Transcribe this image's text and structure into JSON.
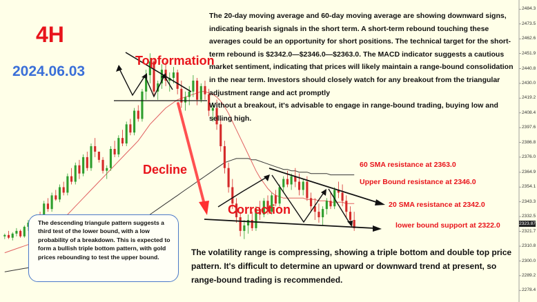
{
  "header": {
    "timeframe": "4H",
    "date": "2024.06.03"
  },
  "annotations": {
    "top_formation": "Topformation",
    "decline": "Decline",
    "correction": "Correction"
  },
  "analysis": {
    "paragraph1": "The 20-day moving average and 60-day moving average are showing downward signs, indicating bearish signals in the short term. A short-term rebound touching these averages could be an opportunity for short positions. The technical target for the short-term rebound is $2342.0—$2346.0—$2363.0. The MACD indicator suggests a cautious market sentiment, indicating that prices will likely maintain a range-bound consolidation in the near term. Investors should closely watch for any breakout from the triangular adjustment range and act promptly",
    "paragraph2": "Without a breakout, it's advisable to engage in range-bound trading, buying low and selling high."
  },
  "levels": {
    "sma60": "60 SMA resistance at 2363.0",
    "upper_bound": "Upper Bound resistance at 2346.0",
    "sma20": "20 SMA resistance at 2342.0",
    "lower_bound": "lower bound support at 2322.0"
  },
  "callout": "The descending triangule pattern suggests a third test of the lower bound, with a low probability of a breakdown. This is expected to form a bullish triple bottom pattern, with gold prices rebounding to test the upper bound.",
  "summary": "The volatility range is compressing, showing a triple bottom and double top price pattern. It's difficult to determine an upward or downward trend at present, so range-bound trading is recommended.",
  "current_price": "2323.87",
  "colors": {
    "background": "#ffffe8",
    "up_candle": "#2e9e2e",
    "down_candle": "#d42a2a",
    "sma20": "#e06060",
    "sma60": "#333333",
    "accent": "#e8141b"
  },
  "chart_data": {
    "type": "candlestick",
    "y_axis_ticks": [
      2484.3,
      2473.5,
      2462.6,
      2451.9,
      2440.8,
      2430.0,
      2419.2,
      2408.4,
      2397.6,
      2386.8,
      2376.0,
      2364.9,
      2354.1,
      2343.3,
      2332.5,
      2321.7,
      2310.8,
      2300.0,
      2289.2,
      2278.4
    ],
    "ylim": [
      2276.0,
      2488.0
    ],
    "key_levels": {
      "sma60_resistance": 2363.0,
      "upper_bound": 2346.0,
      "sma20_resistance": 2342.0,
      "lower_bound_support": 2322.0
    },
    "candles": [
      [
        2318,
        2320,
        2316,
        2319
      ],
      [
        2319,
        2322,
        2316,
        2317
      ],
      [
        2317,
        2321,
        2315,
        2320
      ],
      [
        2320,
        2324,
        2318,
        2322
      ],
      [
        2322,
        2323,
        2317,
        2318
      ],
      [
        2318,
        2326,
        2317,
        2325
      ],
      [
        2325,
        2330,
        2322,
        2328
      ],
      [
        2328,
        2330,
        2323,
        2324
      ],
      [
        2324,
        2334,
        2322,
        2332
      ],
      [
        2332,
        2336,
        2328,
        2330
      ],
      [
        2330,
        2344,
        2329,
        2342
      ],
      [
        2342,
        2346,
        2336,
        2338
      ],
      [
        2338,
        2350,
        2336,
        2348
      ],
      [
        2348,
        2352,
        2344,
        2345
      ],
      [
        2345,
        2356,
        2343,
        2354
      ],
      [
        2354,
        2358,
        2348,
        2350
      ],
      [
        2350,
        2364,
        2348,
        2362
      ],
      [
        2362,
        2368,
        2356,
        2358
      ],
      [
        2358,
        2372,
        2356,
        2370
      ],
      [
        2370,
        2374,
        2360,
        2364
      ],
      [
        2364,
        2378,
        2362,
        2376
      ],
      [
        2376,
        2380,
        2366,
        2368
      ],
      [
        2368,
        2386,
        2366,
        2384
      ],
      [
        2384,
        2390,
        2376,
        2380
      ],
      [
        2380,
        2378,
        2372,
        2374
      ],
      [
        2374,
        2376,
        2364,
        2366
      ],
      [
        2366,
        2370,
        2360,
        2368
      ],
      [
        2368,
        2384,
        2366,
        2382
      ],
      [
        2382,
        2388,
        2376,
        2378
      ],
      [
        2378,
        2392,
        2376,
        2390
      ],
      [
        2390,
        2396,
        2384,
        2386
      ],
      [
        2386,
        2402,
        2384,
        2400
      ],
      [
        2400,
        2404,
        2392,
        2394
      ],
      [
        2394,
        2412,
        2392,
        2410
      ],
      [
        2410,
        2414,
        2402,
        2404
      ],
      [
        2404,
        2426,
        2402,
        2424
      ],
      [
        2424,
        2440,
        2418,
        2436
      ],
      [
        2436,
        2452,
        2430,
        2446
      ],
      [
        2446,
        2448,
        2420,
        2424
      ],
      [
        2424,
        2432,
        2418,
        2430
      ],
      [
        2430,
        2444,
        2426,
        2440
      ],
      [
        2440,
        2446,
        2428,
        2432
      ],
      [
        2432,
        2438,
        2424,
        2434
      ],
      [
        2434,
        2442,
        2430,
        2438
      ],
      [
        2438,
        2440,
        2422,
        2426
      ],
      [
        2426,
        2432,
        2412,
        2416
      ],
      [
        2416,
        2424,
        2410,
        2420
      ],
      [
        2420,
        2428,
        2414,
        2424
      ],
      [
        2424,
        2436,
        2420,
        2432
      ],
      [
        2432,
        2434,
        2414,
        2418
      ],
      [
        2418,
        2430,
        2416,
        2428
      ],
      [
        2428,
        2432,
        2418,
        2422
      ],
      [
        2422,
        2426,
        2406,
        2410
      ],
      [
        2410,
        2416,
        2402,
        2412
      ],
      [
        2412,
        2418,
        2396,
        2400
      ],
      [
        2400,
        2404,
        2380,
        2384
      ],
      [
        2384,
        2388,
        2364,
        2368
      ],
      [
        2368,
        2372,
        2350,
        2354
      ],
      [
        2354,
        2360,
        2338,
        2342
      ],
      [
        2342,
        2346,
        2328,
        2332
      ],
      [
        2332,
        2336,
        2318,
        2322
      ],
      [
        2322,
        2330,
        2316,
        2326
      ],
      [
        2326,
        2334,
        2320,
        2330
      ],
      [
        2330,
        2336,
        2322,
        2324
      ],
      [
        2324,
        2340,
        2322,
        2338
      ],
      [
        2338,
        2344,
        2330,
        2334
      ],
      [
        2334,
        2346,
        2332,
        2344
      ],
      [
        2344,
        2348,
        2334,
        2336
      ],
      [
        2336,
        2350,
        2334,
        2348
      ],
      [
        2348,
        2352,
        2340,
        2342
      ],
      [
        2342,
        2356,
        2340,
        2354
      ],
      [
        2354,
        2362,
        2350,
        2360
      ],
      [
        2360,
        2366,
        2354,
        2356
      ],
      [
        2356,
        2364,
        2352,
        2362
      ],
      [
        2362,
        2368,
        2354,
        2358
      ],
      [
        2358,
        2364,
        2348,
        2352
      ],
      [
        2352,
        2360,
        2348,
        2358
      ],
      [
        2358,
        2362,
        2344,
        2346
      ],
      [
        2346,
        2350,
        2336,
        2340
      ],
      [
        2340,
        2346,
        2330,
        2336
      ],
      [
        2336,
        2342,
        2328,
        2332
      ],
      [
        2332,
        2340,
        2326,
        2338
      ],
      [
        2338,
        2346,
        2334,
        2344
      ],
      [
        2344,
        2350,
        2338,
        2340
      ],
      [
        2340,
        2354,
        2338,
        2352
      ],
      [
        2352,
        2358,
        2346,
        2350
      ],
      [
        2350,
        2356,
        2340,
        2344
      ],
      [
        2344,
        2348,
        2332,
        2336
      ],
      [
        2336,
        2340,
        2326,
        2330
      ],
      [
        2330,
        2336,
        2322,
        2324
      ]
    ],
    "sma20": [
      2306,
      2307,
      2308,
      2309,
      2310,
      2311,
      2312,
      2313,
      2314,
      2316,
      2318,
      2320,
      2322,
      2325,
      2328,
      2331,
      2334,
      2337,
      2340,
      2343,
      2346,
      2349,
      2352,
      2355,
      2358,
      2361,
      2364,
      2367,
      2370,
      2373,
      2376,
      2379,
      2382,
      2385,
      2388,
      2392,
      2396,
      2400,
      2403,
      2406,
      2409,
      2412,
      2414,
      2416,
      2418,
      2419,
      2420,
      2421,
      2422,
      2423,
      2424,
      2424,
      2423,
      2422,
      2420,
      2417,
      2413,
      2408,
      2402,
      2396,
      2390,
      2384,
      2378,
      2372,
      2366,
      2361,
      2357,
      2353,
      2350,
      2348,
      2347,
      2346,
      2346,
      2346,
      2346,
      2346,
      2346,
      2345,
      2345,
      2345,
      2344,
      2344,
      2344,
      2343,
      2343,
      2343,
      2343,
      2342,
      2342,
      2342
    ],
    "sma60": [
      2292,
      2292.5,
      2293,
      2293.5,
      2294,
      2294.5,
      2295,
      2296,
      2297,
      2298,
      2299,
      2300,
      2301,
      2302,
      2303,
      2304,
      2305,
      2306,
      2307,
      2308,
      2309,
      2310,
      2311,
      2312,
      2313,
      2314,
      2315,
      2316,
      2317,
      2318,
      2320,
      2322,
      2324,
      2326,
      2328,
      2330,
      2332,
      2334,
      2336,
      2338,
      2340,
      2342,
      2344,
      2346,
      2348,
      2350,
      2352,
      2354,
      2356,
      2358,
      2360,
      2362,
      2364,
      2366,
      2368,
      2370,
      2372,
      2373,
      2374,
      2375,
      2375,
      2375,
      2375,
      2374,
      2374,
      2373,
      2372,
      2371,
      2370,
      2369,
      2368,
      2367,
      2367,
      2366,
      2366,
      2365,
      2365,
      2365,
      2364,
      2364,
      2364,
      2364,
      2364,
      2363,
      2363,
      2363,
      2363,
      2363,
      2363,
      2363
    ]
  }
}
